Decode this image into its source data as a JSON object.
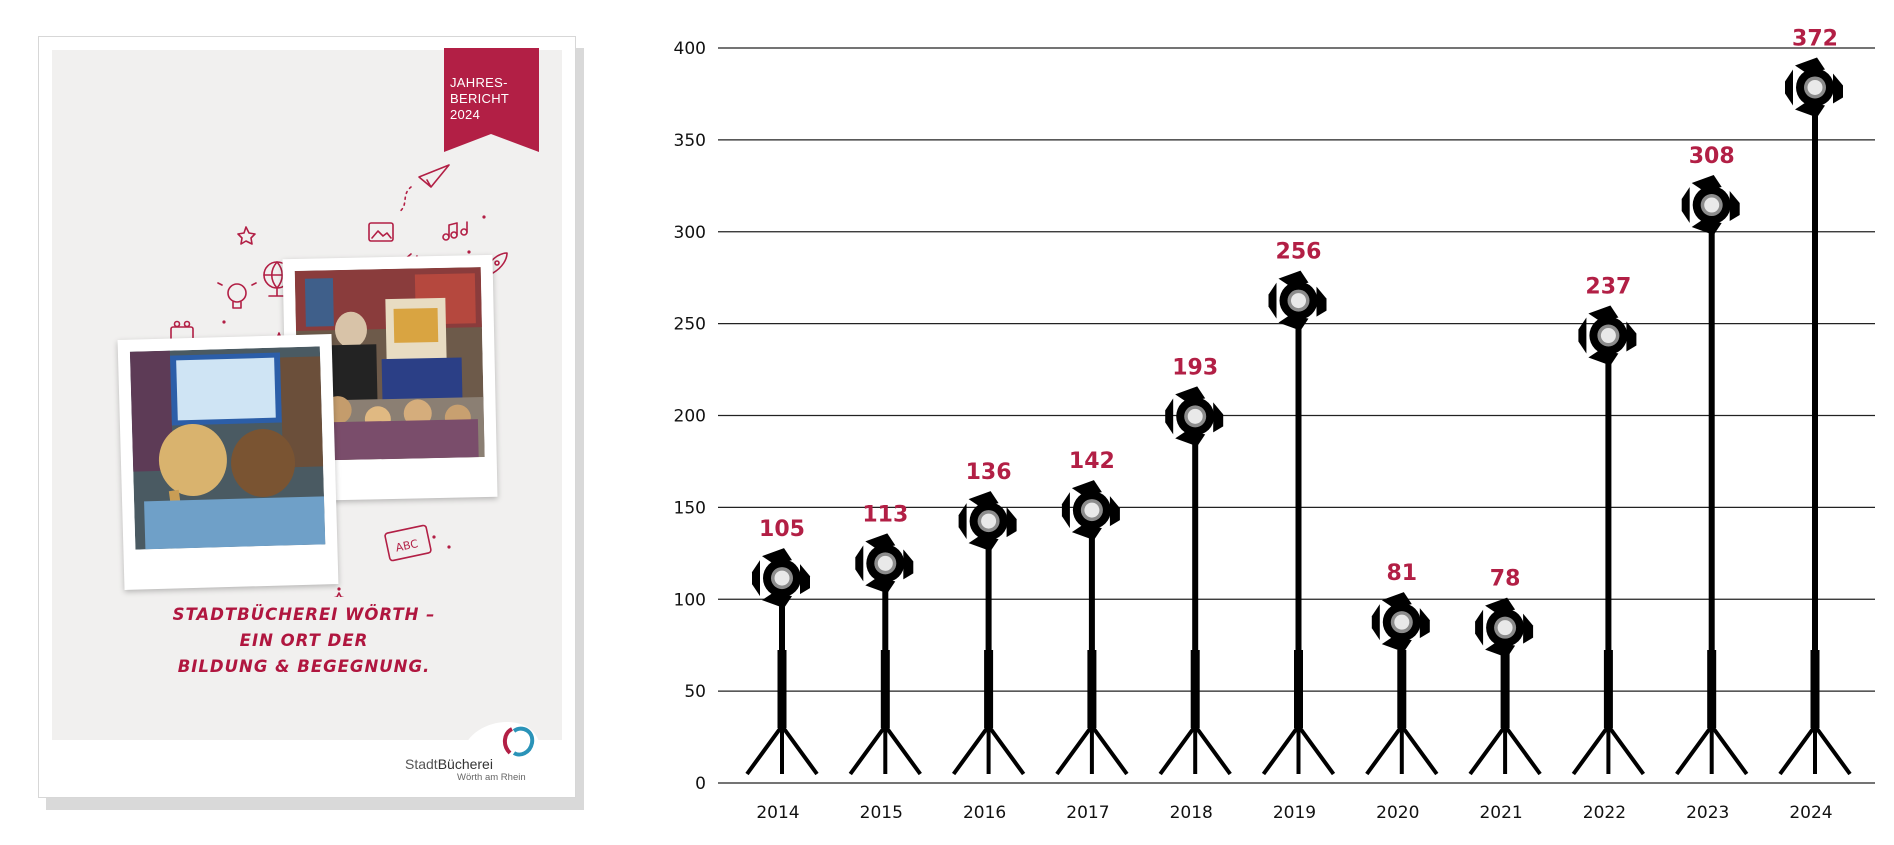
{
  "cover": {
    "ribbon": [
      "JAHRES-",
      "BERICHT",
      "2024"
    ],
    "title_lines": [
      "STADTBÜCHEREI WÖRTH –",
      "EIN ORT DER",
      "BILDUNG & BEGEGNUNG."
    ],
    "logo_name_prefix": "Stadt",
    "logo_name_main": "Bücherei",
    "logo_sub": "Wörth am Rhein",
    "accent_color": "#b21f45"
  },
  "chart_data": {
    "type": "bar",
    "categories": [
      "2014",
      "2015",
      "2016",
      "2017",
      "2018",
      "2019",
      "2020",
      "2021",
      "2022",
      "2023",
      "2024"
    ],
    "values": [
      105,
      113,
      136,
      142,
      193,
      256,
      81,
      78,
      237,
      308,
      372
    ],
    "ylim": [
      0,
      400
    ],
    "yticks": [
      0,
      50,
      100,
      150,
      200,
      250,
      300,
      350,
      400
    ],
    "grid": true,
    "marker": "spotlight-on-tripod",
    "label_color": "#b21f45",
    "mark_color": "#000000"
  }
}
